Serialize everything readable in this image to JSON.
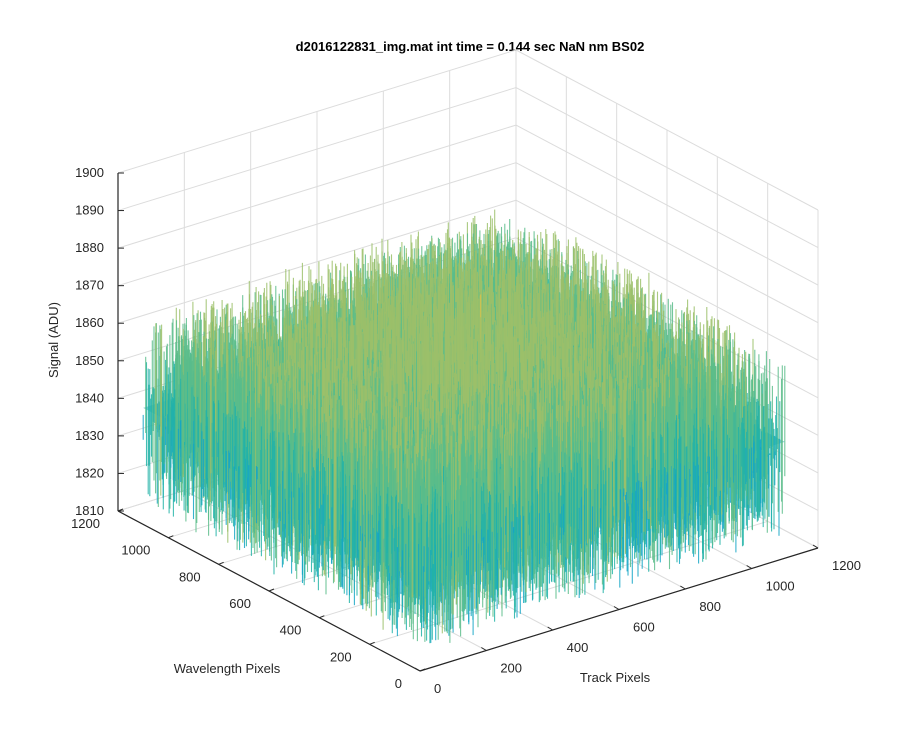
{
  "chart_data": {
    "type": "surface",
    "title": "d2016122831_img.mat int time = 0.144 sec  NaN nm BS02",
    "xlabel": "Track Pixels",
    "ylabel": "Wavelength Pixels",
    "zlabel": "Signal (ADU)",
    "xlim": [
      0,
      1200
    ],
    "ylim": [
      0,
      1200
    ],
    "zlim": [
      1810,
      1900
    ],
    "x_ticks": [
      "0",
      "200",
      "400",
      "600",
      "800",
      "1000",
      "1200"
    ],
    "y_ticks": [
      "0",
      "200",
      "400",
      "600",
      "800",
      "1000",
      "1200"
    ],
    "z_ticks": [
      "1810",
      "1820",
      "1830",
      "1840",
      "1850",
      "1860",
      "1870",
      "1880",
      "1890",
      "1900"
    ],
    "x_extent": [
      0,
      1100
    ],
    "y_extent": [
      0,
      1100
    ],
    "surface_mean": 1845,
    "surface_range": [
      1812,
      1895
    ],
    "grid": true,
    "colormap": [
      "#1f63c8",
      "#1c8fd8",
      "#15a6c6",
      "#23b3a8",
      "#5bbd8a",
      "#9cc06a",
      "#d7c24d",
      "#f2cf3a"
    ]
  }
}
